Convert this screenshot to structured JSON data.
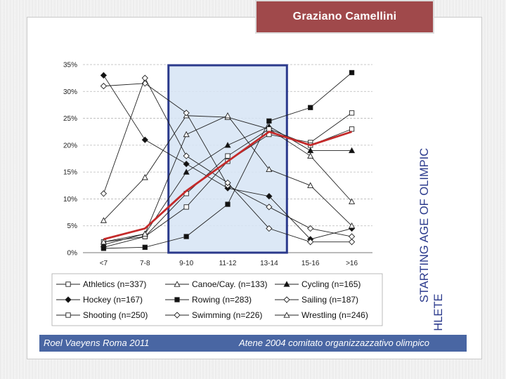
{
  "header": {
    "title": "Graziano Camellini"
  },
  "side_title": {
    "line1": "STARTING AGE OF OLIMPIC",
    "line2": "ATHLETE"
  },
  "footer": {
    "left": "Roel Vaeyens Roma 2011",
    "right": "Atene 2004 comitato organizzazzativo olimpico"
  },
  "colors": {
    "title_tab": "#a0494b",
    "footer_bar": "#4966a3",
    "highlight_fill": "#d6e4f4",
    "highlight_border": "#2b3a8c",
    "mean_line": "#c42a2a"
  },
  "chart_data": {
    "type": "line",
    "categories": [
      "<7",
      "7-8",
      "9-10",
      "11-12",
      "13-14",
      "15-16",
      ">16"
    ],
    "y_ticks": [
      "0%",
      "5%",
      "10%",
      "15%",
      "20%",
      "25%",
      "30%",
      "35%"
    ],
    "ylim": [
      0,
      35
    ],
    "y_unit": "%",
    "grid": "horizontal dashed",
    "highlight_categories": [
      "9-10",
      "11-12",
      "13-14"
    ],
    "series": [
      {
        "name": "Athletics (n=337)",
        "marker": "square-open",
        "values": [
          1.0,
          3.0,
          8.5,
          17.0,
          22.0,
          20.5,
          26.0
        ]
      },
      {
        "name": "Canoe/Cay. (n=133)",
        "marker": "triangle-open",
        "values": [
          6.0,
          14.0,
          25.5,
          25.2,
          23.0,
          18.0,
          9.5
        ]
      },
      {
        "name": "Cycling (n=165)",
        "marker": "triangle-filled",
        "values": [
          1.5,
          3.5,
          15.0,
          20.0,
          23.5,
          19.0,
          19.0
        ]
      },
      {
        "name": "Hockey (n=167)",
        "marker": "diamond-filled",
        "values": [
          33.0,
          21.0,
          16.5,
          12.0,
          10.5,
          2.5,
          4.5
        ]
      },
      {
        "name": "Rowing (n=283)",
        "marker": "square-filled",
        "values": [
          0.8,
          1.0,
          3.0,
          9.0,
          24.5,
          27.0,
          33.5
        ]
      },
      {
        "name": "Sailing (n=187)",
        "marker": "diamond-open",
        "values": [
          31.0,
          31.5,
          26.0,
          12.5,
          8.5,
          4.5,
          3.0
        ]
      },
      {
        "name": "Shooting (n=250)",
        "marker": "square-open",
        "values": [
          2.0,
          3.0,
          11.0,
          18.0,
          23.0,
          20.0,
          23.0
        ]
      },
      {
        "name": "Swimming (n=226)",
        "marker": "diamond-open",
        "values": [
          11.0,
          32.5,
          18.0,
          13.0,
          4.5,
          2.0,
          2.0
        ]
      },
      {
        "name": "Wrestling (n=246)",
        "marker": "triangle-open",
        "values": [
          2.0,
          3.5,
          22.0,
          25.5,
          15.5,
          12.5,
          5.0
        ]
      }
    ],
    "mean_line_values": [
      2.5,
      4.5,
      11.5,
      17.0,
      22.5,
      20.0,
      22.5
    ]
  }
}
